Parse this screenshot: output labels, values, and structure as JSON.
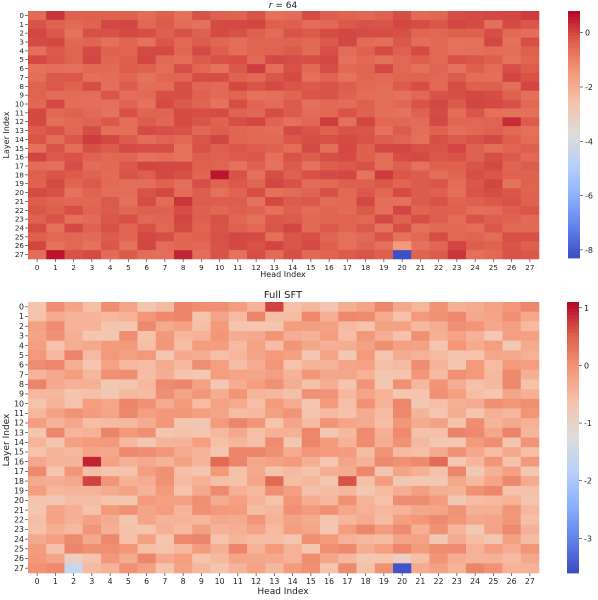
{
  "chart_data": [
    {
      "type": "heatmap",
      "title": "r = 64",
      "title_var": "r",
      "title_rest": " = 64",
      "xlabel": "Head Index",
      "ylabel": "Layer Index",
      "x_ticks": [
        "0",
        "1",
        "2",
        "3",
        "4",
        "5",
        "6",
        "7",
        "8",
        "9",
        "10",
        "11",
        "12",
        "13",
        "14",
        "15",
        "16",
        "17",
        "18",
        "19",
        "20",
        "21",
        "22",
        "23",
        "24",
        "25",
        "26",
        "27"
      ],
      "y_ticks": [
        "0",
        "1",
        "2",
        "3",
        "4",
        "5",
        "6",
        "7",
        "8",
        "9",
        "10",
        "11",
        "12",
        "13",
        "14",
        "15",
        "16",
        "17",
        "18",
        "19",
        "20",
        "21",
        "22",
        "23",
        "24",
        "25",
        "26",
        "27"
      ],
      "colormap": "coolwarm",
      "vmin": -8.3,
      "vmax": 0.8,
      "colorbar_ticks": [
        "0",
        "-2",
        "-4",
        "-6",
        "-8"
      ],
      "colorbar_tick_values": [
        0,
        -2,
        -4,
        -6,
        -8
      ],
      "base_value": -0.35,
      "hot_cells": [
        {
          "row": 0,
          "col": 1,
          "value": 0.2
        },
        {
          "row": 0,
          "col": 27,
          "value": 0.1
        },
        {
          "row": 6,
          "col": 12,
          "value": 0.1
        },
        {
          "row": 12,
          "col": 16,
          "value": 0.1
        },
        {
          "row": 12,
          "col": 26,
          "value": 0.3
        },
        {
          "row": 14,
          "col": 3,
          "value": 0.1
        },
        {
          "row": 18,
          "col": 10,
          "value": 0.6
        },
        {
          "row": 18,
          "col": 19,
          "value": 0.1
        },
        {
          "row": 21,
          "col": 8,
          "value": 0.2
        },
        {
          "row": 27,
          "col": 1,
          "value": 0.6
        },
        {
          "row": 27,
          "col": 8,
          "value": 0.4
        },
        {
          "row": 27,
          "col": 23,
          "value": 0.2
        }
      ],
      "cold_cells": [
        {
          "row": 26,
          "col": 20,
          "value": -1.5
        },
        {
          "row": 27,
          "col": 20,
          "value": -8.2
        }
      ]
    },
    {
      "type": "heatmap",
      "title": "Full SFT",
      "xlabel": "Head Index",
      "ylabel": "Layer Index",
      "x_ticks": [
        "0",
        "1",
        "2",
        "3",
        "4",
        "5",
        "6",
        "7",
        "8",
        "9",
        "10",
        "11",
        "12",
        "13",
        "14",
        "15",
        "16",
        "17",
        "18",
        "19",
        "20",
        "21",
        "22",
        "23",
        "24",
        "25",
        "26",
        "27"
      ],
      "y_ticks": [
        "0",
        "1",
        "2",
        "3",
        "4",
        "5",
        "6",
        "7",
        "8",
        "9",
        "10",
        "11",
        "12",
        "13",
        "14",
        "15",
        "16",
        "17",
        "18",
        "19",
        "20",
        "21",
        "22",
        "23",
        "24",
        "25",
        "26",
        "27"
      ],
      "colormap": "coolwarm",
      "vmin": -3.6,
      "vmax": 1.1,
      "colorbar_ticks": [
        "1",
        "0",
        "-1",
        "-2",
        "-3"
      ],
      "colorbar_tick_values": [
        1,
        0,
        -1,
        -2,
        -3
      ],
      "base_value": -0.3,
      "hot_cells": [
        {
          "row": 0,
          "col": 13,
          "value": 0.7
        },
        {
          "row": 16,
          "col": 3,
          "value": 0.9
        },
        {
          "row": 18,
          "col": 3,
          "value": 0.7
        },
        {
          "row": 18,
          "col": 17,
          "value": 0.6
        },
        {
          "row": 16,
          "col": 10,
          "value": 0.4
        },
        {
          "row": 18,
          "col": 13,
          "value": 0.4
        },
        {
          "row": 16,
          "col": 22,
          "value": 0.4
        }
      ],
      "cold_cells": [
        {
          "row": 27,
          "col": 2,
          "value": -1.6
        },
        {
          "row": 27,
          "col": 20,
          "value": -3.5
        },
        {
          "row": 26,
          "col": 20,
          "value": -0.9
        },
        {
          "row": 26,
          "col": 2,
          "value": -0.9
        }
      ]
    }
  ]
}
